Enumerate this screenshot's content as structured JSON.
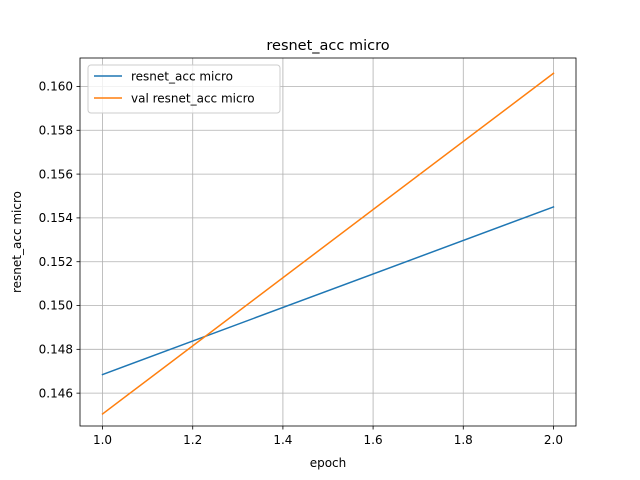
{
  "chart_data": {
    "type": "line",
    "title": "resnet_acc micro",
    "xlabel": "epoch",
    "ylabel": "resnet_acc micro",
    "xlim": [
      0.95,
      2.05
    ],
    "ylim": [
      0.1445,
      0.1613
    ],
    "x_ticks": [
      "1.0",
      "1.2",
      "1.4",
      "1.6",
      "1.8",
      "2.0"
    ],
    "x_tick_values": [
      1.0,
      1.2,
      1.4,
      1.6,
      1.8,
      2.0
    ],
    "y_ticks": [
      "0.146",
      "0.148",
      "0.150",
      "0.152",
      "0.154",
      "0.156",
      "0.158",
      "0.160"
    ],
    "y_tick_values": [
      0.146,
      0.148,
      0.15,
      0.152,
      0.154,
      0.156,
      0.158,
      0.16
    ],
    "grid": true,
    "legend_position": "top-left",
    "series": [
      {
        "name": "resnet_acc micro",
        "color": "#1f77b4",
        "x": [
          1.0,
          2.0
        ],
        "y": [
          0.14685,
          0.1545
        ]
      },
      {
        "name": "val resnet_acc micro",
        "color": "#ff7f0e",
        "x": [
          1.0,
          2.0
        ],
        "y": [
          0.14505,
          0.1606
        ]
      }
    ]
  }
}
